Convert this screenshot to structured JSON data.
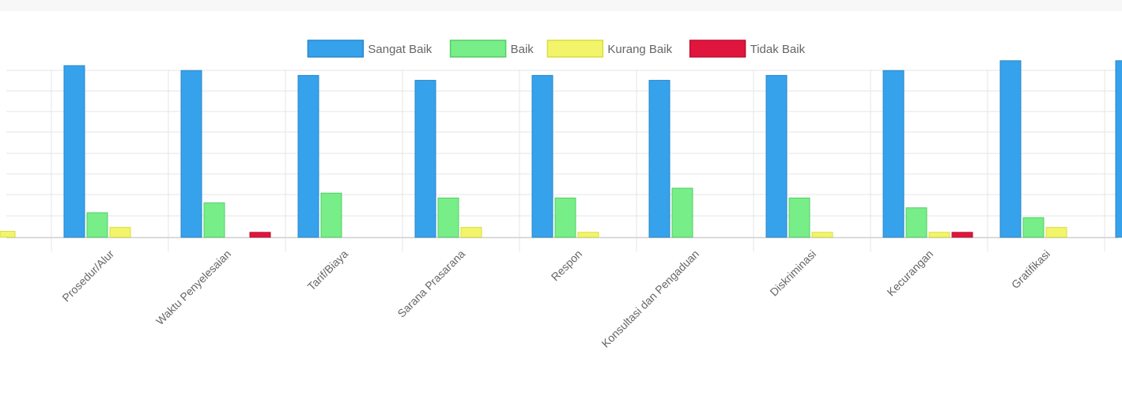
{
  "chart_data": {
    "type": "bar",
    "title": "",
    "xlabel": "",
    "ylabel": "",
    "categories": [
      "Prosedur/Alur",
      "Waktu Penyelesaian",
      "Tarif/Biaya",
      "Sarana Prasarana",
      "Respon",
      "Konsultasi dan Pengaduan",
      "Diskriminasi",
      "Kecurangan",
      "Gratifikasi"
    ],
    "series": [
      {
        "name": "Sangat Baik",
        "color": "#36a2eb",
        "border": "#2a86c8",
        "values": [
          35,
          34,
          33,
          32,
          33,
          32,
          33,
          34,
          36
        ]
      },
      {
        "name": "Baik",
        "color": "#77ee88",
        "border": "#55cc66",
        "values": [
          5,
          7,
          9,
          8,
          8,
          10,
          8,
          6,
          4
        ]
      },
      {
        "name": "Kurang Baik",
        "color": "#f2f56a",
        "border": "#d8dc40",
        "values": [
          2,
          0,
          0,
          2,
          1,
          0,
          1,
          1,
          2
        ]
      },
      {
        "name": "Tidak Baik",
        "color": "#e0163f",
        "border": "#b81030",
        "values": [
          0,
          1,
          0,
          0,
          0,
          0,
          0,
          1,
          0
        ]
      }
    ],
    "ylim": [
      0,
      40
    ],
    "grid": true,
    "legend": "top"
  }
}
